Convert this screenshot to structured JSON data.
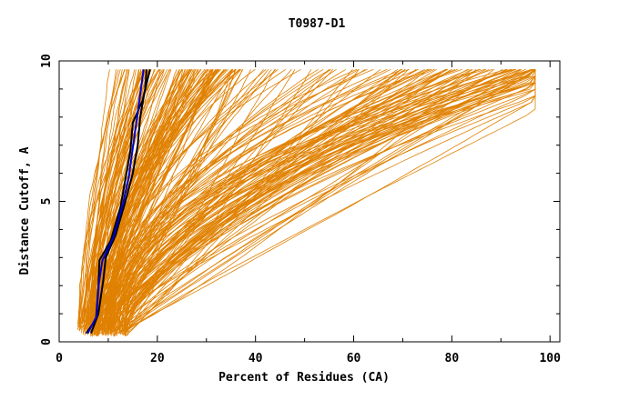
{
  "chart_data": {
    "type": "line",
    "title": "T0987-D1",
    "xlabel": "Percent of Residues (CA)",
    "ylabel": "Distance Cutoff, A",
    "xlim": [
      0,
      102
    ],
    "ylim": [
      0,
      10
    ],
    "x_ticks": [
      0,
      20,
      40,
      60,
      80,
      100
    ],
    "y_ticks": [
      0,
      5,
      10
    ],
    "grid": false,
    "legend": "none",
    "colors": {
      "background_series": "#e08000",
      "highlight_black": "#000000",
      "highlight_blue": "#0000cc"
    },
    "band_groups": [
      {
        "count": 40,
        "start": [
          6,
          0.5
        ],
        "end": [
          17,
          9.7
        ],
        "seed": 7
      },
      {
        "count": 80,
        "start": [
          8,
          0.4
        ],
        "end": [
          30,
          9.7
        ],
        "seed": 13
      },
      {
        "count": 30,
        "start": [
          10,
          0.3
        ],
        "end": [
          52,
          9.7
        ],
        "seed": 21
      },
      {
        "count": 90,
        "start": [
          10,
          0.3
        ],
        "end": [
          90,
          9.7
        ],
        "seed": 33
      }
    ],
    "highlight_series": [
      {
        "color": "#000000",
        "x": [
          5.5,
          7.5,
          8.0,
          8.2,
          10.5,
          12.5,
          13.5,
          14.5,
          15.0,
          17.0,
          18.5
        ],
        "y": [
          0.3,
          0.8,
          2.0,
          2.9,
          3.6,
          4.8,
          5.8,
          6.8,
          7.8,
          8.6,
          9.7
        ]
      },
      {
        "color": "#000000",
        "x": [
          6.5,
          8.0,
          9.0,
          9.5,
          11.5,
          13.5,
          15.0,
          16.0,
          16.5,
          17.5,
          17.8
        ],
        "y": [
          0.3,
          1.0,
          2.2,
          3.0,
          3.8,
          5.0,
          6.0,
          7.0,
          8.0,
          9.0,
          9.7
        ]
      },
      {
        "color": "#0000cc",
        "x": [
          5.8,
          7.6,
          8.1,
          8.8,
          11.0,
          13.0,
          14.2,
          15.0,
          15.8,
          16.5,
          17.2
        ],
        "y": [
          0.3,
          0.9,
          2.1,
          2.9,
          3.7,
          4.9,
          5.9,
          6.9,
          7.9,
          8.8,
          9.7
        ]
      }
    ]
  }
}
